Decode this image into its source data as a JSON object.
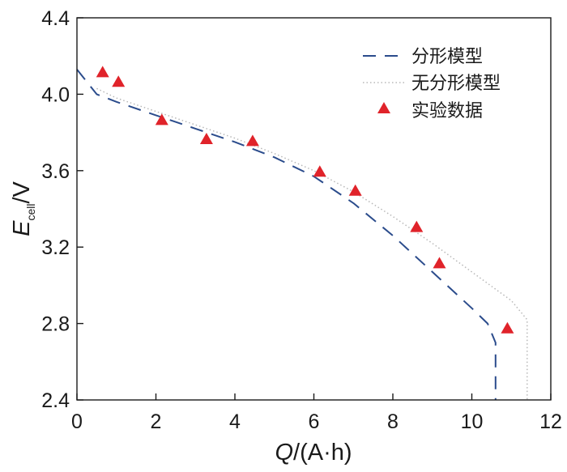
{
  "chart_data": {
    "type": "scatter",
    "xlabel": {
      "main": "Q",
      "rest": "/(A·h)"
    },
    "ylabel": {
      "main": "E",
      "sub": "cell",
      "rest": "/V"
    },
    "xlim": [
      0,
      12
    ],
    "ylim": [
      2.4,
      4.4
    ],
    "xticks": [
      0,
      2,
      4,
      6,
      8,
      10,
      12
    ],
    "yticks": [
      2.4,
      2.8,
      3.2,
      3.6,
      4.0,
      4.4
    ],
    "xtick_labels": [
      "0",
      "2",
      "4",
      "6",
      "8",
      "10",
      "12"
    ],
    "ytick_labels": [
      "2.4",
      "2.8",
      "3.2",
      "3.6",
      "4.0",
      "4.4"
    ],
    "grid": false,
    "legend_position": "top-right",
    "series": [
      {
        "name": "分形模型",
        "kind": "line",
        "style": "dashed",
        "color": "#2b4c8c",
        "x": [
          0,
          0.5,
          1,
          2,
          3,
          4,
          5,
          6,
          7,
          8,
          9,
          10,
          10.4,
          10.6,
          10.6
        ],
        "y": [
          4.13,
          4.0,
          3.96,
          3.89,
          3.82,
          3.75,
          3.67,
          3.57,
          3.43,
          3.26,
          3.07,
          2.88,
          2.8,
          2.7,
          2.4
        ]
      },
      {
        "name": "无分形模型",
        "kind": "line",
        "style": "dotted",
        "color": "#b8b8b8",
        "x": [
          0.5,
          1,
          2,
          3,
          4,
          5,
          6,
          7,
          8,
          9,
          10,
          11,
          11.4,
          11.4
        ],
        "y": [
          4.03,
          3.98,
          3.91,
          3.84,
          3.77,
          3.69,
          3.6,
          3.49,
          3.36,
          3.22,
          3.07,
          2.92,
          2.82,
          2.4
        ]
      },
      {
        "name": "实验数据",
        "kind": "scatter",
        "marker": "triangle",
        "color": "#e0232a",
        "x": [
          0.65,
          1.05,
          2.15,
          3.28,
          4.45,
          6.15,
          7.05,
          8.6,
          9.18,
          10.9
        ],
        "y": [
          4.11,
          4.06,
          3.86,
          3.76,
          3.75,
          3.59,
          3.49,
          3.3,
          3.11,
          2.77
        ]
      }
    ]
  }
}
